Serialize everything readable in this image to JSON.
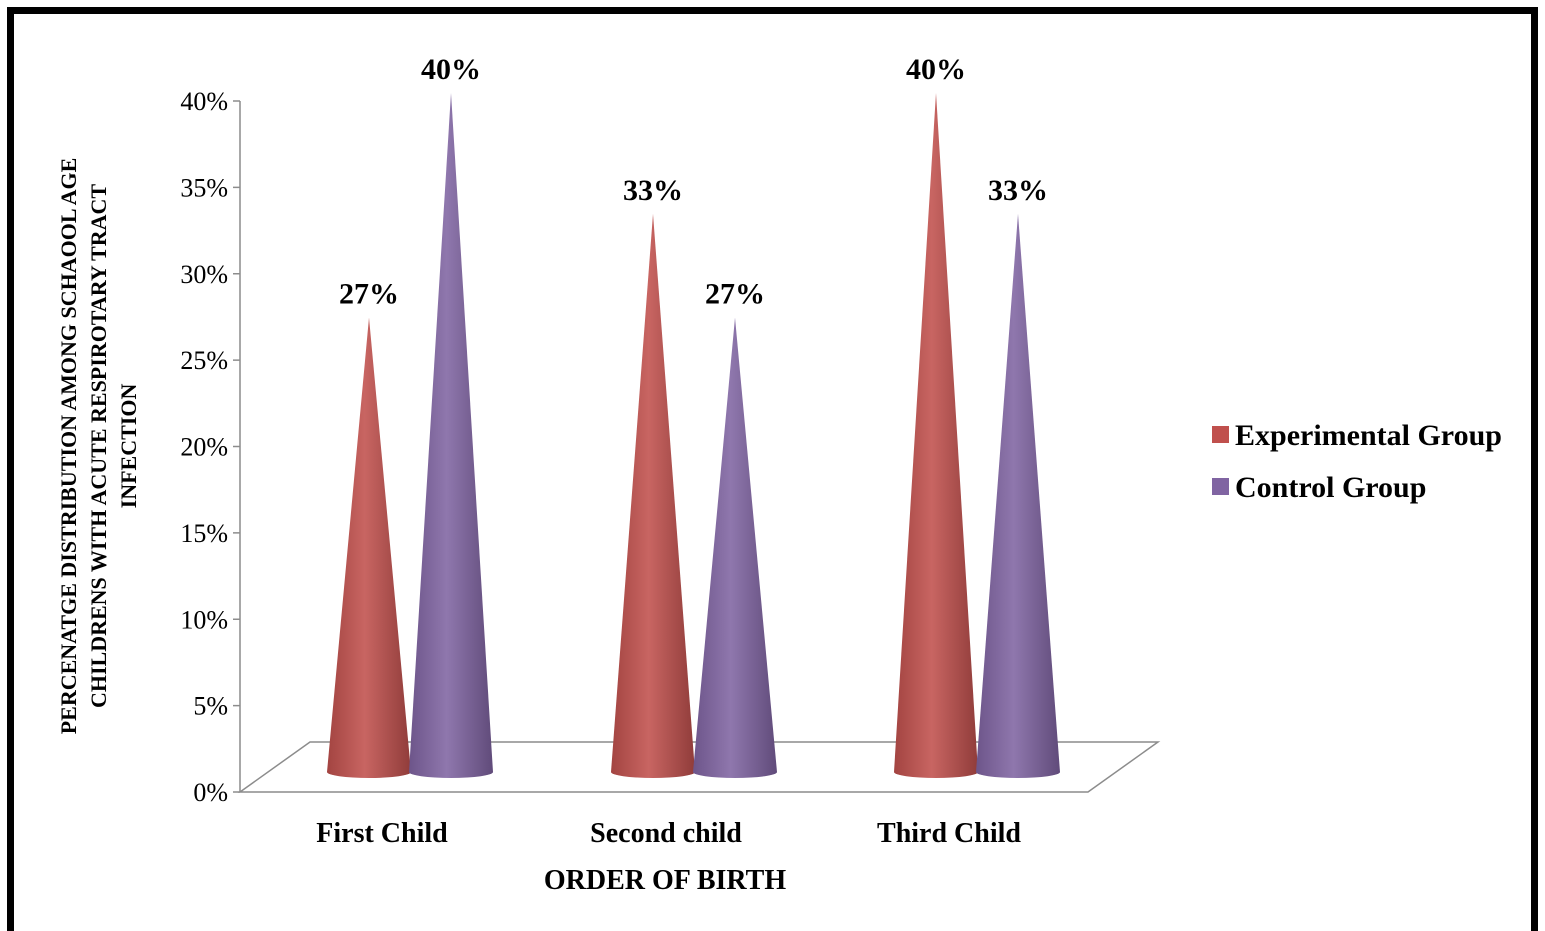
{
  "chart_data": {
    "type": "bar",
    "style": "3d-cone",
    "categories": [
      "First Child",
      "Second child",
      "Third Child"
    ],
    "series": [
      {
        "name": "Experimental Group",
        "values": [
          27,
          33,
          40
        ],
        "labels": [
          "27%",
          "33%",
          "40%"
        ],
        "color": "#c0504d"
      },
      {
        "name": "Control Group",
        "values": [
          40,
          27,
          33
        ],
        "labels": [
          "40%",
          "27%",
          "33%"
        ],
        "color": "#8064a2"
      }
    ],
    "xlabel": "ORDER OF BIRTH",
    "ylabel": [
      "PERCENATGE DISTRIBUTION AMONG SCHAOOL AGE",
      "CHILDRENS WITH ACUTE RESPIROTARY TRACT",
      "INFECTION"
    ],
    "ylim": [
      0,
      40
    ],
    "yticks": [
      "0%",
      "5%",
      "10%",
      "15%",
      "20%",
      "25%",
      "30%",
      "35%",
      "40%"
    ],
    "legend_position": "right",
    "grid": false
  }
}
